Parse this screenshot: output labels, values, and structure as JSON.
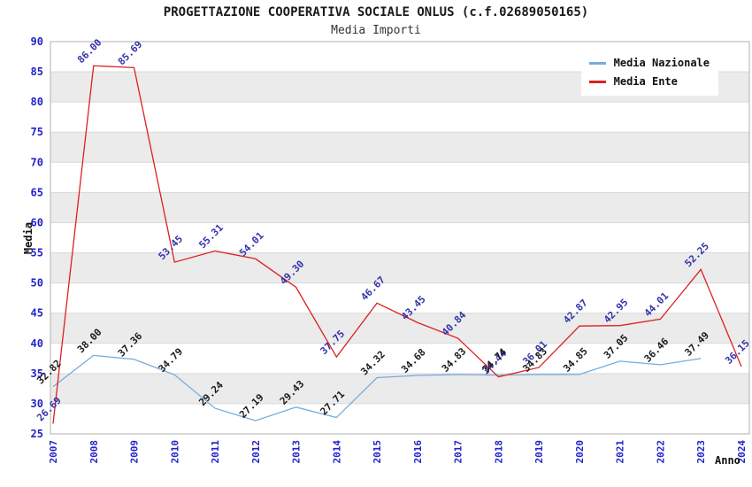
{
  "chart_data": {
    "type": "line",
    "title": "PROGETTAZIONE COOPERATIVA SOCIALE ONLUS (c.f.02689050165)",
    "subtitle": "Media Importi",
    "xlabel": "Anno",
    "ylabel": "Media",
    "ylim": [
      25,
      90
    ],
    "ytick_step": 5,
    "grid": "horizontal-bands",
    "legend_position": "top-right",
    "axis_tick_color": "#2222cc",
    "band_colors": [
      "#ffffff",
      "#ebebeb"
    ],
    "gridline_color": "#d9d9d9",
    "border_color": "#b0b0b0",
    "categories": [
      2007,
      2008,
      2009,
      2010,
      2011,
      2012,
      2013,
      2014,
      2015,
      2016,
      2017,
      2018,
      2019,
      2020,
      2021,
      2022,
      2023,
      2024
    ],
    "series": [
      {
        "name": "Media Nazionale",
        "color": "#74acdf",
        "label_color": "#1a1a1a",
        "values": [
          32.82,
          38.0,
          37.36,
          34.79,
          29.24,
          27.19,
          29.43,
          27.71,
          34.32,
          34.68,
          34.83,
          34.74,
          34.83,
          34.85,
          37.05,
          36.46,
          37.49,
          null
        ]
      },
      {
        "name": "Media Ente",
        "color": "#dd2020",
        "label_color": "#3333aa",
        "values": [
          26.69,
          86.0,
          85.69,
          53.45,
          55.31,
          54.01,
          49.3,
          37.75,
          46.67,
          43.45,
          40.84,
          34.44,
          36.01,
          42.87,
          42.95,
          44.01,
          52.25,
          36.15
        ]
      }
    ]
  }
}
